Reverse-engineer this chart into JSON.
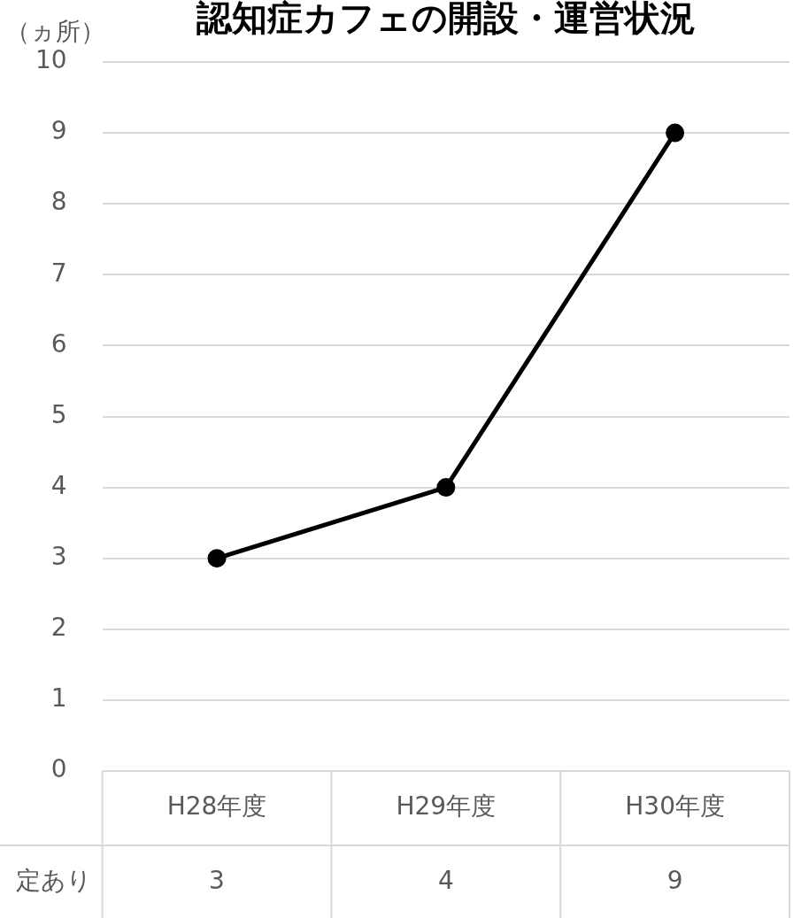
{
  "chart_data": {
    "type": "line",
    "title": "認知症カフェの開設・運営状況",
    "ylabel": "（ヵ所）",
    "categories": [
      "H28年度",
      "H29年度",
      "H30年度"
    ],
    "series": [
      {
        "name": "定あり",
        "color": "#000000",
        "values": [
          3,
          4,
          9
        ]
      }
    ],
    "ylim": [
      0,
      10
    ],
    "yticks": [
      0,
      1,
      2,
      3,
      4,
      5,
      6,
      7,
      8,
      9,
      10
    ],
    "grid": "y",
    "legend": false,
    "marker": "circle",
    "line_style": "solid",
    "data_labels": true
  }
}
